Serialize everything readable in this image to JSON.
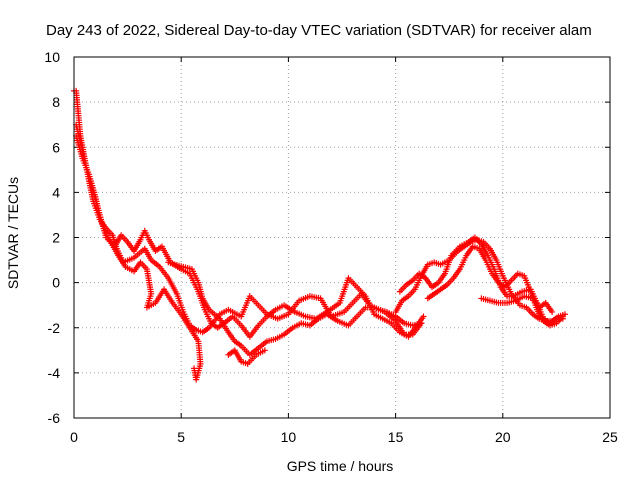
{
  "chart_data": {
    "type": "scatter",
    "title": "Day 243 of 2022, Sidereal Day-to-day VTEC variation (SDTVAR) for receiver alam",
    "xlabel": "GPS time / hours",
    "ylabel": "SDTVAR / TECUs",
    "xlim": [
      0,
      25
    ],
    "ylim": [
      -6,
      10
    ],
    "xticks": [
      "0",
      "5",
      "10",
      "15",
      "20",
      "25"
    ],
    "yticks": [
      "-6",
      "-4",
      "-2",
      "0",
      "2",
      "4",
      "6",
      "8",
      "10"
    ],
    "grid": true,
    "marker": "+",
    "series": [
      {
        "name": "SDTVAR",
        "color": "#ff0000",
        "tracks": [
          [
            [
              0.0,
              8.5
            ],
            [
              0.1,
              8.5
            ],
            [
              0.2,
              7.5
            ],
            [
              0.3,
              6.5
            ],
            [
              0.5,
              5.5
            ],
            [
              0.7,
              4.5
            ],
            [
              0.9,
              3.6
            ],
            [
              1.2,
              2.8
            ],
            [
              1.5,
              2.4
            ],
            [
              1.8,
              2.1
            ],
            [
              2.0,
              1.5
            ],
            [
              2.3,
              0.9
            ],
            [
              2.8,
              1.1
            ],
            [
              3.3,
              1.5
            ],
            [
              3.6,
              1.0
            ],
            [
              4.0,
              0.7
            ],
            [
              4.4,
              0.2
            ],
            [
              4.8,
              -0.5
            ],
            [
              5.1,
              -1.3
            ],
            [
              5.4,
              -1.9
            ],
            [
              5.7,
              -2.1
            ],
            [
              6.0,
              -2.2
            ],
            [
              6.3,
              -2.0
            ],
            [
              6.8,
              -1.4
            ],
            [
              7.2,
              -1.2
            ],
            [
              7.8,
              -1.5
            ],
            [
              8.2,
              -0.6
            ],
            [
              8.6,
              -1.0
            ],
            [
              9.0,
              -1.4
            ],
            [
              9.5,
              -1.6
            ],
            [
              10.0,
              -1.4
            ],
            [
              10.5,
              -0.8
            ],
            [
              11.0,
              -0.6
            ],
            [
              11.5,
              -0.7
            ],
            [
              12.0,
              -1.5
            ],
            [
              12.6,
              -1.3
            ],
            [
              13.0,
              -0.9
            ],
            [
              13.4,
              -0.5
            ],
            [
              13.8,
              -1.0
            ],
            [
              14.2,
              -1.2
            ],
            [
              14.6,
              -1.3
            ],
            [
              15.0,
              -1.5
            ],
            [
              15.4,
              -1.8
            ],
            [
              15.8,
              -1.9
            ],
            [
              16.2,
              -1.8
            ]
          ],
          [
            [
              0.1,
              7.0
            ],
            [
              0.3,
              6.2
            ],
            [
              0.6,
              5.0
            ],
            [
              0.9,
              4.0
            ],
            [
              1.2,
              3.0
            ],
            [
              1.5,
              2.0
            ],
            [
              1.9,
              1.6
            ],
            [
              2.2,
              2.1
            ],
            [
              2.5,
              1.8
            ],
            [
              2.8,
              1.4
            ],
            [
              3.1,
              1.9
            ],
            [
              3.3,
              2.3
            ],
            [
              3.5,
              1.9
            ],
            [
              3.8,
              1.4
            ],
            [
              4.1,
              1.6
            ],
            [
              4.5,
              0.9
            ],
            [
              5.0,
              0.6
            ],
            [
              5.4,
              0.4
            ],
            [
              5.8,
              -0.4
            ],
            [
              6.1,
              -1.2
            ],
            [
              6.4,
              -1.8
            ],
            [
              6.7,
              -2.0
            ],
            [
              7.0,
              -1.8
            ],
            [
              7.4,
              -1.5
            ],
            [
              7.8,
              -1.9
            ],
            [
              8.2,
              -2.4
            ],
            [
              8.6,
              -1.9
            ],
            [
              9.0,
              -1.5
            ],
            [
              9.4,
              -1.2
            ],
            [
              9.8,
              -1.0
            ],
            [
              10.3,
              -1.3
            ],
            [
              10.8,
              -1.5
            ],
            [
              11.3,
              -1.6
            ],
            [
              11.8,
              -1.3
            ],
            [
              12.4,
              -0.9
            ],
            [
              12.8,
              0.2
            ],
            [
              13.2,
              -0.2
            ],
            [
              13.6,
              -0.6
            ],
            [
              14.0,
              -1.4
            ],
            [
              14.4,
              -1.6
            ],
            [
              14.8,
              -1.8
            ],
            [
              15.2,
              -2.2
            ],
            [
              15.6,
              -2.4
            ],
            [
              16.0,
              -1.9
            ],
            [
              16.3,
              -1.5
            ]
          ],
          [
            [
              0.1,
              6.5
            ],
            [
              0.4,
              5.5
            ],
            [
              0.7,
              4.8
            ],
            [
              1.0,
              3.8
            ],
            [
              1.3,
              2.6
            ],
            [
              1.6,
              2.0
            ],
            [
              2.0,
              1.3
            ],
            [
              2.4,
              0.7
            ],
            [
              2.8,
              0.5
            ],
            [
              3.1,
              0.9
            ],
            [
              3.4,
              0.6
            ],
            [
              3.6,
              -0.5
            ],
            [
              3.4,
              -1.1
            ],
            [
              3.8,
              -0.9
            ],
            [
              4.2,
              -0.3
            ],
            [
              4.6,
              -0.9
            ],
            [
              5.0,
              -1.4
            ],
            [
              5.4,
              -2.0
            ],
            [
              5.8,
              -2.6
            ],
            [
              5.9,
              -3.6
            ],
            [
              5.7,
              -4.3
            ],
            [
              5.6,
              -3.8
            ]
          ],
          [
            [
              4.4,
              0.9
            ],
            [
              4.7,
              0.8
            ],
            [
              5.1,
              0.7
            ],
            [
              5.5,
              0.6
            ],
            [
              5.8,
              0.0
            ],
            [
              6.0,
              -0.7
            ],
            [
              6.3,
              -1.2
            ],
            [
              6.8,
              -1.6
            ],
            [
              7.2,
              -2.2
            ],
            [
              7.5,
              -2.6
            ],
            [
              7.8,
              -2.8
            ],
            [
              8.2,
              -3.2
            ],
            [
              8.6,
              -2.9
            ],
            [
              9.0,
              -2.6
            ],
            [
              9.4,
              -2.5
            ],
            [
              9.8,
              -2.3
            ],
            [
              10.2,
              -2.0
            ],
            [
              10.6,
              -1.8
            ],
            [
              11.0,
              -1.9
            ],
            [
              11.4,
              -1.6
            ],
            [
              11.8,
              -1.4
            ],
            [
              12.3,
              -1.7
            ],
            [
              12.8,
              -1.9
            ],
            [
              13.2,
              -1.5
            ],
            [
              13.6,
              -1.1
            ],
            [
              14.0,
              -1.1
            ],
            [
              14.5,
              -1.3
            ],
            [
              15.0,
              -1.7
            ],
            [
              15.4,
              -2.3
            ],
            [
              15.8,
              -2.3
            ],
            [
              16.2,
              -1.8
            ]
          ],
          [
            [
              7.2,
              -3.2
            ],
            [
              7.5,
              -3.0
            ],
            [
              7.8,
              -3.5
            ],
            [
              8.1,
              -3.6
            ],
            [
              8.5,
              -3.2
            ],
            [
              8.9,
              -3.0
            ]
          ],
          [
            [
              15.0,
              -1.3
            ],
            [
              15.3,
              -0.8
            ],
            [
              15.6,
              -0.6
            ],
            [
              15.9,
              -0.3
            ],
            [
              16.2,
              0.3
            ],
            [
              16.5,
              0.8
            ],
            [
              16.8,
              0.9
            ],
            [
              17.1,
              0.8
            ],
            [
              17.5,
              1.0
            ],
            [
              17.9,
              1.4
            ],
            [
              18.2,
              1.6
            ],
            [
              18.5,
              1.8
            ],
            [
              18.8,
              1.9
            ],
            [
              19.1,
              1.8
            ],
            [
              19.4,
              1.5
            ],
            [
              19.7,
              1.0
            ],
            [
              20.0,
              0.3
            ],
            [
              20.4,
              -0.5
            ],
            [
              20.8,
              -1.0
            ],
            [
              21.1,
              -1.1
            ],
            [
              21.4,
              -1.4
            ],
            [
              21.7,
              -1.6
            ],
            [
              22.0,
              -1.7
            ],
            [
              22.3,
              -1.7
            ],
            [
              22.6,
              -1.5
            ],
            [
              22.9,
              -1.4
            ]
          ],
          [
            [
              15.2,
              -0.4
            ],
            [
              15.5,
              -0.1
            ],
            [
              15.8,
              0.1
            ],
            [
              16.1,
              0.4
            ],
            [
              16.4,
              0.2
            ],
            [
              16.7,
              -0.2
            ],
            [
              17.0,
              0.0
            ],
            [
              17.3,
              0.4
            ],
            [
              17.6,
              1.2
            ],
            [
              18.0,
              1.6
            ],
            [
              18.4,
              1.8
            ],
            [
              18.7,
              2.0
            ],
            [
              19.0,
              1.7
            ],
            [
              19.3,
              1.2
            ],
            [
              19.6,
              0.6
            ],
            [
              19.9,
              -0.2
            ],
            [
              20.2,
              -0.6
            ],
            [
              20.5,
              -0.6
            ],
            [
              20.9,
              -0.4
            ],
            [
              21.3,
              -0.3
            ],
            [
              21.6,
              -0.9
            ],
            [
              21.9,
              -1.6
            ],
            [
              22.2,
              -1.8
            ],
            [
              22.5,
              -1.6
            ],
            [
              22.8,
              -1.6
            ]
          ],
          [
            [
              16.5,
              -0.7
            ],
            [
              16.8,
              -0.5
            ],
            [
              17.1,
              -0.3
            ],
            [
              17.4,
              -0.1
            ],
            [
              17.7,
              0.2
            ],
            [
              18.0,
              0.6
            ],
            [
              18.3,
              1.2
            ],
            [
              18.6,
              1.6
            ],
            [
              18.9,
              1.5
            ],
            [
              19.2,
              1.0
            ],
            [
              19.5,
              0.4
            ],
            [
              19.8,
              0.0
            ],
            [
              20.1,
              -0.2
            ],
            [
              20.4,
              0.1
            ],
            [
              20.7,
              0.4
            ],
            [
              21.0,
              0.3
            ],
            [
              21.3,
              -0.4
            ],
            [
              21.6,
              -1.2
            ],
            [
              21.9,
              -1.7
            ],
            [
              22.2,
              -1.9
            ],
            [
              22.5,
              -1.8
            ],
            [
              22.8,
              -1.5
            ]
          ],
          [
            [
              19.0,
              -0.7
            ],
            [
              19.4,
              -0.8
            ],
            [
              19.8,
              -0.9
            ],
            [
              20.2,
              -0.9
            ],
            [
              20.6,
              -0.8
            ],
            [
              21.0,
              -0.6
            ],
            [
              21.4,
              -0.7
            ],
            [
              21.7,
              -1.1
            ],
            [
              22.0,
              -0.9
            ],
            [
              22.3,
              -1.3
            ]
          ]
        ]
      }
    ]
  }
}
